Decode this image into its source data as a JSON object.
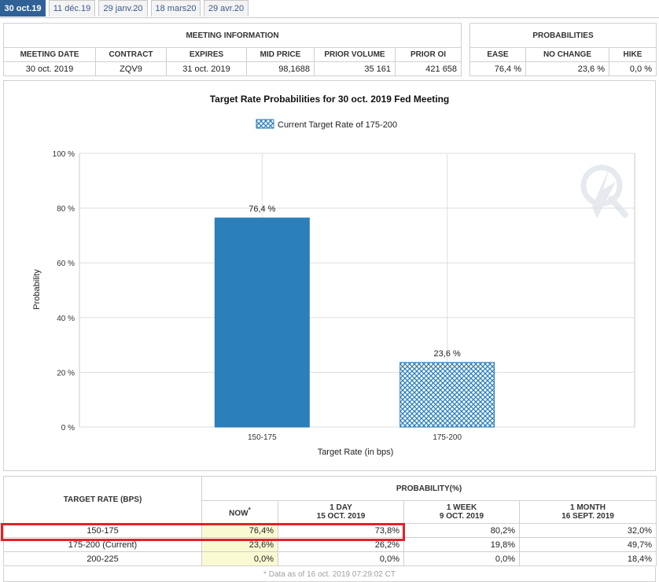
{
  "tabs": [
    "30 oct.19",
    "11 déc.19",
    "29 janv.20",
    "18 mars20",
    "29 avr.20"
  ],
  "meeting_info": {
    "title": "MEETING INFORMATION",
    "headers": [
      "MEETING DATE",
      "CONTRACT",
      "EXPIRES",
      "MID PRICE",
      "PRIOR VOLUME",
      "PRIOR OI"
    ],
    "row": [
      "30 oct. 2019",
      "ZQV9",
      "31 oct. 2019",
      "98,1688",
      "35 161",
      "421 658"
    ]
  },
  "probabilities": {
    "title": "PROBABILITIES",
    "headers": [
      "EASE",
      "NO CHANGE",
      "HIKE"
    ],
    "row": [
      "76,4 %",
      "23,6 %",
      "0,0 %"
    ]
  },
  "chart_data": {
    "type": "bar",
    "title": "Target Rate Probabilities for 30 oct. 2019 Fed Meeting",
    "legend": "Current Target Rate of 175-200",
    "categories": [
      "150-175",
      "175-200"
    ],
    "values": [
      76.4,
      23.6
    ],
    "data_labels": [
      "76,4 %",
      "23,6 %"
    ],
    "styles": [
      "solid",
      "crosshatch"
    ],
    "xlabel": "Target Rate (in bps)",
    "ylabel": "Probability",
    "ylim": [
      0,
      100
    ],
    "yticks": [
      0,
      20,
      40,
      60,
      80,
      100
    ],
    "ytick_labels": [
      "0 %",
      "20 %",
      "40 %",
      "60 %",
      "80 %",
      "100 %"
    ],
    "bar_color": "#2b7fbb",
    "grid": true
  },
  "prob_table": {
    "target_header": "TARGET RATE (BPS)",
    "prob_header": "PROBABILITY(%)",
    "cols": [
      {
        "l1": "NOW",
        "l2": "",
        "mark": "*"
      },
      {
        "l1": "1 DAY",
        "l2": "15 OCT. 2019"
      },
      {
        "l1": "1 WEEK",
        "l2": "9 OCT. 2019"
      },
      {
        "l1": "1 MONTH",
        "l2": "16 SEPT. 2019"
      }
    ],
    "rows": [
      {
        "rate": "150-175",
        "vals": [
          "76,4%",
          "73,8%",
          "80,2%",
          "32,0%"
        ]
      },
      {
        "rate": "175-200 (Current)",
        "vals": [
          "23,6%",
          "26,2%",
          "19,8%",
          "49,7%"
        ]
      },
      {
        "rate": "200-225",
        "vals": [
          "0,0%",
          "0,0%",
          "0,0%",
          "18,4%"
        ]
      }
    ],
    "footnote": "* Data as of 16 oct. 2019 07:29:02 CT"
  }
}
